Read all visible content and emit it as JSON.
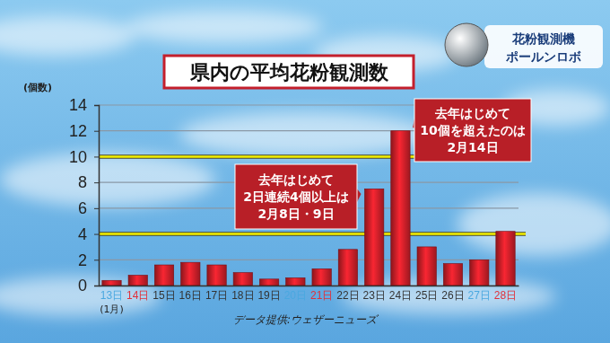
{
  "chart_data": {
    "type": "bar",
    "title": "県内の平均花粉観測数",
    "badge": [
      "花粉観測機",
      "ポールンロボ"
    ],
    "ylabel": "(個数)",
    "x_sublabel": "(1月)",
    "source": "データ提供:ウェザーニューズ",
    "categories": [
      "13日",
      "14日",
      "15日",
      "16日",
      "17日",
      "18日",
      "19日",
      "20日",
      "21日",
      "22日",
      "23日",
      "24日",
      "25日",
      "26日",
      "27日",
      "28日"
    ],
    "values": [
      0.4,
      0.8,
      1.6,
      1.8,
      1.6,
      1.0,
      0.5,
      0.6,
      1.3,
      2.8,
      7.5,
      12.0,
      3.0,
      1.7,
      2.0,
      4.2
    ],
    "color": "#d0202a",
    "ylim": [
      0,
      14
    ],
    "yticks": [
      0,
      2,
      4,
      6,
      8,
      10,
      12,
      14
    ],
    "grid": true,
    "reference_lines": [
      4,
      10
    ],
    "annotations": [
      {
        "text": [
          "去年はじめて",
          "2日連続4個以上は",
          "2月8日・9日"
        ]
      },
      {
        "text": [
          "去年はじめて",
          "10個を超えたのは",
          "2月14日"
        ]
      }
    ]
  }
}
